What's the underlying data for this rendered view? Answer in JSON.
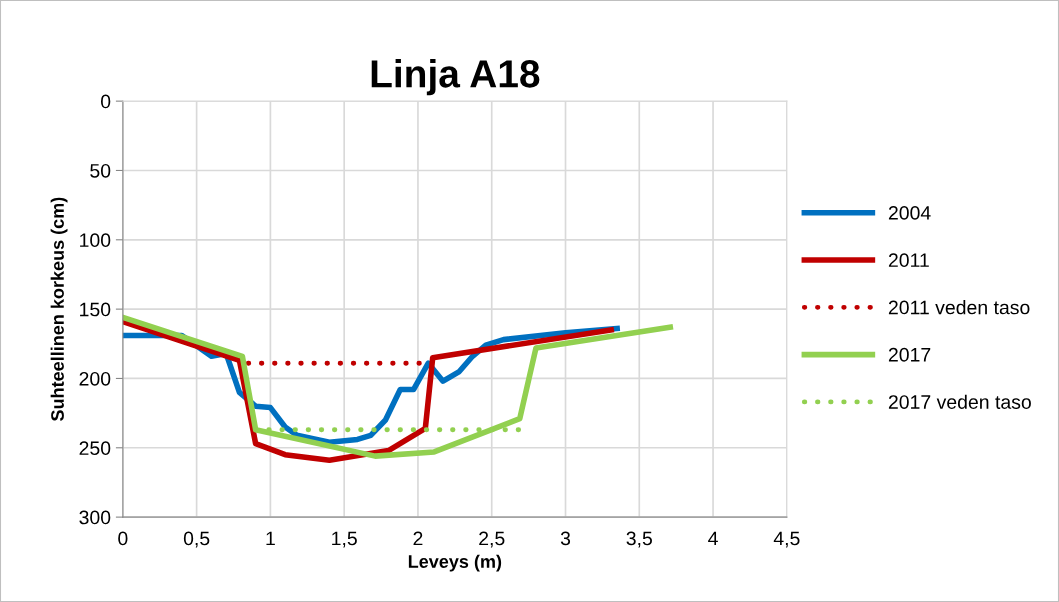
{
  "chart_data": {
    "type": "line",
    "title": "Linja A18",
    "xlabel": "Leveys (m)",
    "ylabel": "Suhteellinen korkeus (cm)",
    "xlim": [
      0,
      4.5
    ],
    "ylim": [
      300,
      0
    ],
    "xticks": [
      0,
      {
        "value": 0.5,
        "label": "0,5"
      },
      1,
      {
        "value": 1.5,
        "label": "1,5"
      },
      2,
      {
        "value": 2.5,
        "label": "2,5"
      },
      3,
      {
        "value": 3.5,
        "label": "3,5"
      },
      4,
      {
        "value": 4.5,
        "label": "4,5"
      }
    ],
    "yticks": [
      0,
      50,
      100,
      150,
      200,
      250,
      300
    ],
    "grid": true,
    "legend": "right",
    "marker": "none",
    "series": [
      {
        "name": "2004",
        "color": "#0070c0",
        "line_style": "solid",
        "x": [
          0,
          0.4,
          0.6,
          0.7,
          0.79,
          0.9,
          1.0,
          1.1,
          1.18,
          1.4,
          1.59,
          1.68,
          1.78,
          1.88,
          1.97,
          2.07,
          2.17,
          2.28,
          2.37,
          2.46,
          2.58,
          3.0,
          3.35
        ],
        "values": [
          169,
          169,
          184,
          182,
          210,
          220,
          221,
          235,
          241,
          246,
          244,
          241,
          230,
          208,
          208,
          189,
          202,
          195,
          184,
          176,
          172,
          167,
          164
        ]
      },
      {
        "name": "2011",
        "color": "#c00000",
        "line_style": "solid",
        "x": [
          0,
          0.79,
          0.9,
          1.1,
          1.4,
          1.8,
          2.05,
          2.1,
          3.31
        ],
        "values": [
          159,
          187,
          247,
          255,
          259,
          252,
          236,
          185,
          165
        ]
      },
      {
        "name": "2011 veden taso",
        "color": "#c00000",
        "line_style": "dotted",
        "x": [
          0.85,
          2.05
        ],
        "values": [
          189,
          189
        ]
      },
      {
        "name": "2017",
        "color": "#92d050",
        "line_style": "solid",
        "x": [
          0,
          0.81,
          0.9,
          1.71,
          2.11,
          2.69,
          2.8,
          3.71
        ],
        "values": [
          156,
          184,
          237,
          256,
          253,
          229,
          178,
          163
        ]
      },
      {
        "name": "2017 veden taso",
        "color": "#92d050",
        "line_style": "dotted",
        "x": [
          0.9,
          2.7
        ],
        "values": [
          237,
          237
        ]
      }
    ]
  }
}
